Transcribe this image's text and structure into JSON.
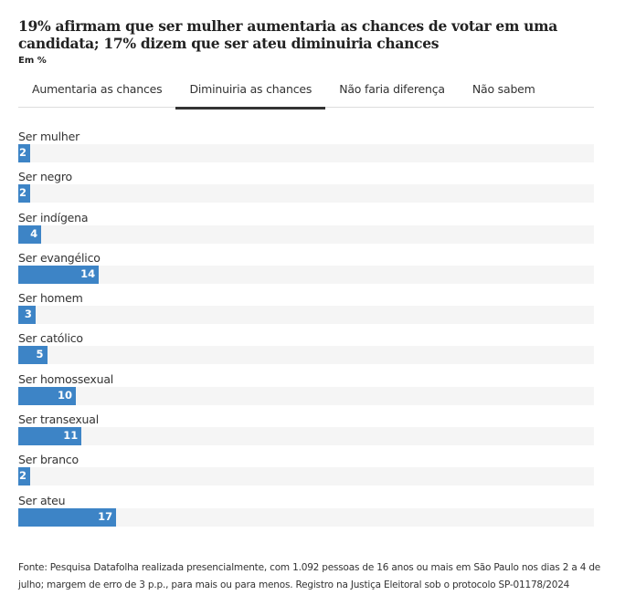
{
  "title": "19% afirmam que ser mulher aumentaria as chances de votar em uma candidata; 17% dizem que ser ateu diminuiria chances",
  "subtitle": "Em %",
  "tabs": [
    {
      "label": "Aumentaria as chances",
      "active": false
    },
    {
      "label": "Diminuiria as chances",
      "active": true
    },
    {
      "label": "Não faria diferença",
      "active": false
    },
    {
      "label": "Não sabem",
      "active": false
    }
  ],
  "chart_data": {
    "type": "bar",
    "orientation": "horizontal",
    "categories": [
      "Ser mulher",
      "Ser negro",
      "Ser indígena",
      "Ser evangélico",
      "Ser homem",
      "Ser católico",
      "Ser homossexual",
      "Ser transexual",
      "Ser branco",
      "Ser ateu"
    ],
    "values": [
      2,
      2,
      4,
      14,
      3,
      5,
      10,
      11,
      2,
      17
    ],
    "xlim": [
      0,
      100
    ],
    "bar_color": "#3d84c6",
    "track_color": "#f5f5f5"
  },
  "source": "Fonte: Pesquisa Datafolha realizada presencialmente, com 1.092 pessoas de 16 anos ou mais em São Paulo nos dias 2 a 4 de julho; margem de erro de 3 p.p., para mais ou para menos. Registro na Justiça Eleitoral sob o protocolo SP-01178/2024"
}
